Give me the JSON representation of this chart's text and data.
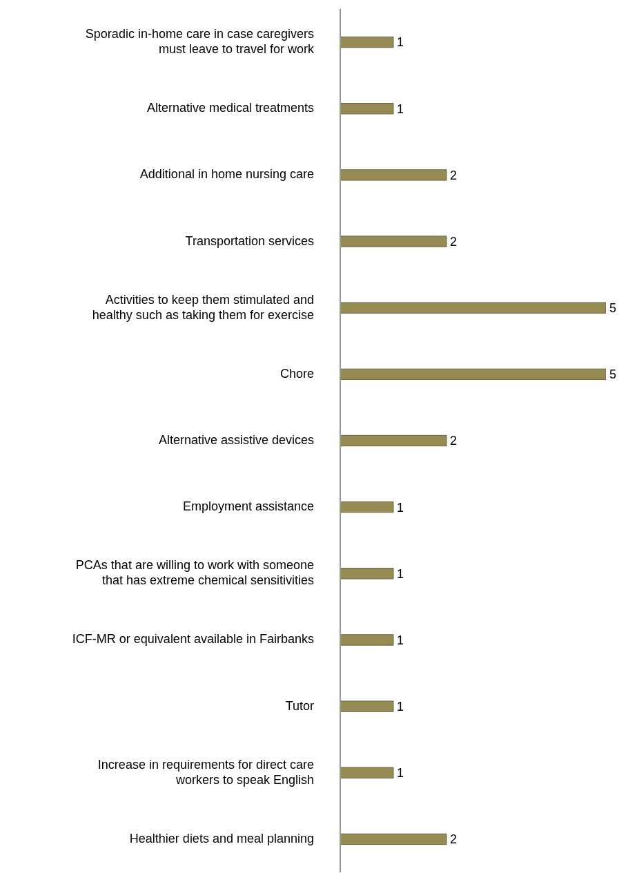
{
  "chart_data": {
    "type": "bar",
    "orientation": "horizontal",
    "categories": [
      "Sporadic in-home care in case caregivers must leave to travel for work",
      "Alternative medical treatments",
      "Additional in home nursing care",
      "Transportation services",
      "Activities to keep them stimulated and healthy such as taking them for exercise",
      "Chore",
      "Alternative assistive devices",
      "Employment assistance",
      "PCAs that are willing to work with someone that has extreme chemical sensitivities",
      "ICF-MR or equivalent available in Fairbanks",
      "Tutor",
      "Increase in requirements for direct care workers to speak English",
      "Healthier diets and meal planning"
    ],
    "values": [
      1,
      1,
      2,
      2,
      5,
      5,
      2,
      1,
      1,
      1,
      1,
      1,
      2
    ],
    "color": "#958b55",
    "data_labels": true,
    "grid": false,
    "legend": false
  }
}
